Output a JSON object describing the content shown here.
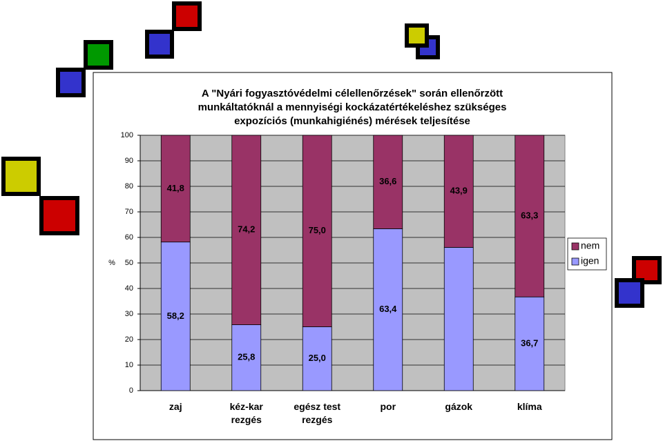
{
  "chart_data": {
    "type": "stacked-bar",
    "title": "A \"Nyári fogyasztóvédelmi célellenőrzések\" során ellenőrzött\nmunkáltatóknál a mennyiségi kockázatértékeléshez szükséges\nexpozíciós (munkahigiénés) mérések teljesítése",
    "y_label": "%",
    "categories": [
      "zaj",
      "kéz-kar\nrezgés",
      "egész test\nrezgés",
      "por",
      "gázok",
      "klíma"
    ],
    "series": [
      {
        "name": "igen",
        "color": "#9999ff",
        "values": [
          58.2,
          25.8,
          25.0,
          63.4,
          56.1,
          36.7
        ],
        "value_labels": [
          "58,2",
          "25,8",
          "25,0",
          "63,4",
          null,
          "36,7"
        ]
      },
      {
        "name": "nem",
        "color": "#993366",
        "values": [
          41.8,
          74.2,
          75.0,
          36.6,
          43.9,
          63.3
        ],
        "value_labels": [
          "41,8",
          "74,2",
          "75,0",
          "36,6",
          "43,9",
          "63,3"
        ]
      }
    ],
    "ylim": [
      0,
      100
    ],
    "yticks": [
      0,
      10,
      20,
      30,
      40,
      50,
      60,
      70,
      80,
      90,
      100
    ],
    "grid": true,
    "legend": "right",
    "plot_background": "#c0c0c0"
  }
}
